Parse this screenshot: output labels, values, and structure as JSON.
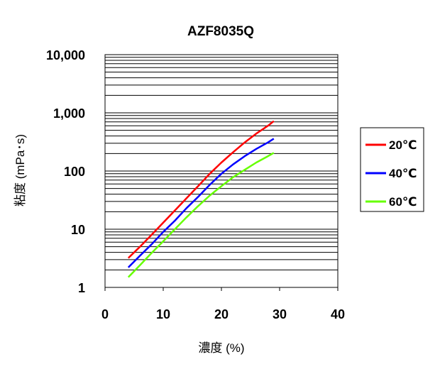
{
  "chart_data": {
    "type": "line",
    "title": "AZF8035Q",
    "xlabel": "濃度 (%)",
    "ylabel": "粘度 (mPa･s)",
    "xlim": [
      0,
      40
    ],
    "ylim": [
      1,
      10000
    ],
    "yscale": "log",
    "grid": "horizontal minor log lines",
    "legend_position": "right",
    "x_ticks": [
      "0",
      "10",
      "20",
      "30",
      "40"
    ],
    "y_ticks": [
      "1",
      "10",
      "100",
      "1,000",
      "10,000"
    ],
    "series": [
      {
        "name": "20℃",
        "color": "#ff0000",
        "x": [
          4,
          6,
          8,
          10,
          12,
          14,
          16,
          18,
          20,
          22,
          24,
          26,
          28,
          29
        ],
        "y": [
          3.2,
          5,
          8,
          13,
          21,
          34,
          55,
          90,
          140,
          210,
          310,
          440,
          600,
          720
        ]
      },
      {
        "name": "40℃",
        "color": "#0000ff",
        "x": [
          4,
          6,
          8,
          10,
          12,
          14,
          16,
          18,
          20,
          22,
          24,
          26,
          28,
          29
        ],
        "y": [
          2.2,
          3.5,
          5.5,
          9,
          14,
          23,
          36,
          58,
          90,
          130,
          180,
          240,
          310,
          360
        ]
      },
      {
        "name": "60℃",
        "color": "#66ff00",
        "x": [
          4,
          6,
          8,
          10,
          12,
          14,
          16,
          18,
          20,
          22,
          24,
          26,
          28,
          29
        ],
        "y": [
          1.5,
          2.4,
          3.9,
          6.2,
          10,
          16,
          25,
          38,
          55,
          78,
          105,
          140,
          180,
          205
        ]
      }
    ]
  }
}
